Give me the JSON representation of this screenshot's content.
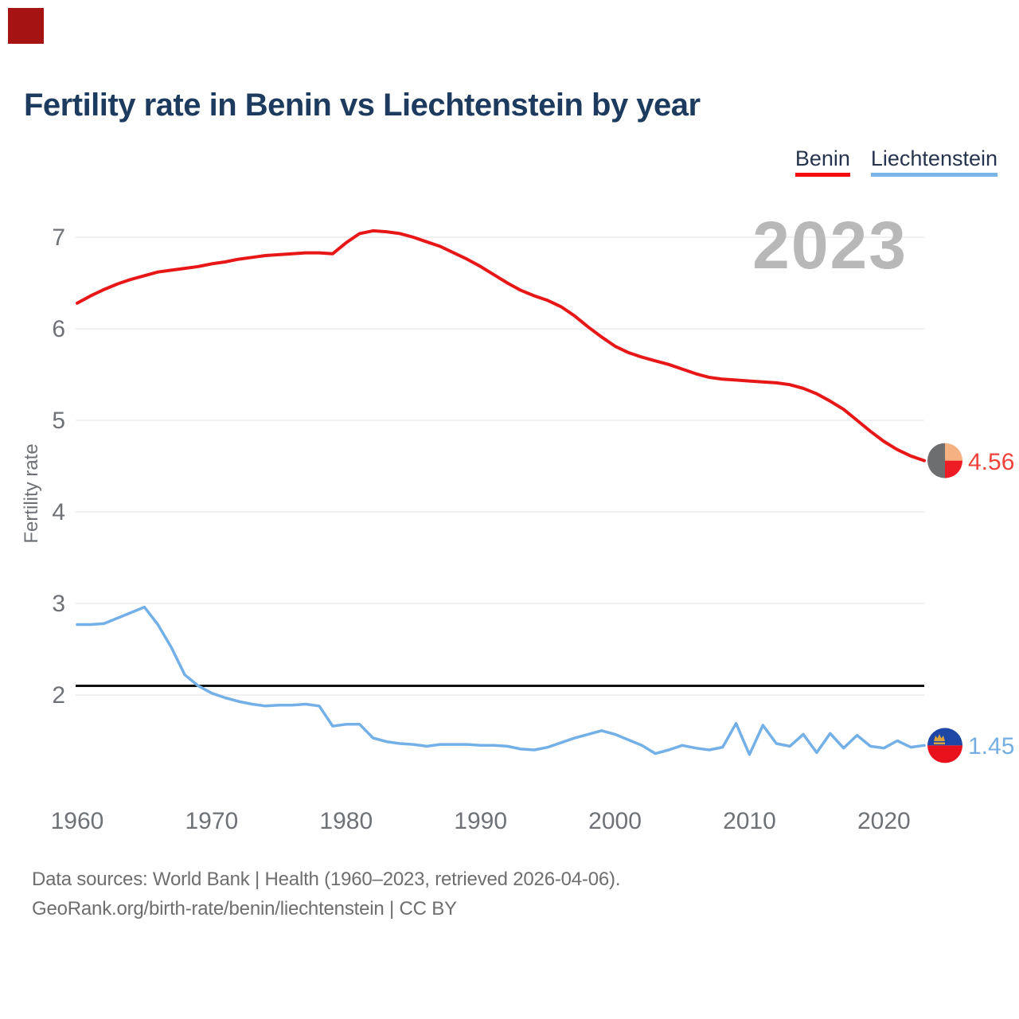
{
  "title": "Fertility rate in Benin vs Liechtenstein by year",
  "watermark_year": "2023",
  "legend": [
    {
      "label": "Benin",
      "color": "#f40b0b"
    },
    {
      "label": "Liechtenstein",
      "color": "#7cb5e8"
    }
  ],
  "end_labels": {
    "benin": "4.56",
    "liechtenstein": "1.45"
  },
  "footer": {
    "line1": "Data sources: World Bank | Health (1960–2023, retrieved 2026-04-06).",
    "line2": "GeoRank.org/birth-rate/benin/liechtenstein | CC BY"
  },
  "colors": {
    "corner_square": "#a51313",
    "title": "#1d3b5e",
    "benin_line": "#e81717",
    "liechtenstein_line": "#74b0e8",
    "label_benin": "#f0413a",
    "label_liechtenstein": "#74aee3",
    "reference_line": "#111111",
    "grid": "#ececec",
    "axis_text": "#6e7277",
    "watermark": "#b8b8b8",
    "footer_text": "#6e6e6e"
  },
  "flags": {
    "benin": {
      "left": "#6d6e70",
      "top_right": "#f6b183",
      "bottom_right": "#ee1c24"
    },
    "liechtenstein": {
      "top": "#1e46a5",
      "bottom": "#e8111c",
      "crown": "#d9a43b"
    }
  },
  "chart_data": {
    "type": "line",
    "title": "Fertility rate in Benin vs Liechtenstein by year",
    "xlabel": "",
    "ylabel": "Fertility rate",
    "x_ticks": [
      1960,
      1970,
      1980,
      1990,
      2000,
      2010,
      2020
    ],
    "y_ticks": [
      2,
      3,
      4,
      5,
      6,
      7
    ],
    "ylim": [
      1.2,
      7.4
    ],
    "grid": true,
    "legend_position": "top-right",
    "reference_line": 2.1,
    "x": [
      1960,
      1961,
      1962,
      1963,
      1964,
      1965,
      1966,
      1967,
      1968,
      1969,
      1970,
      1971,
      1972,
      1973,
      1974,
      1975,
      1976,
      1977,
      1978,
      1979,
      1980,
      1981,
      1982,
      1983,
      1984,
      1985,
      1986,
      1987,
      1988,
      1989,
      1990,
      1991,
      1992,
      1993,
      1994,
      1995,
      1996,
      1997,
      1998,
      1999,
      2000,
      2001,
      2002,
      2003,
      2004,
      2005,
      2006,
      2007,
      2008,
      2009,
      2010,
      2011,
      2012,
      2013,
      2014,
      2015,
      2016,
      2017,
      2018,
      2019,
      2020,
      2021,
      2022,
      2023
    ],
    "series": [
      {
        "name": "Benin",
        "values": [
          6.28,
          6.36,
          6.43,
          6.49,
          6.54,
          6.58,
          6.62,
          6.64,
          6.66,
          6.68,
          6.71,
          6.73,
          6.76,
          6.78,
          6.8,
          6.81,
          6.82,
          6.83,
          6.83,
          6.82,
          6.94,
          7.04,
          7.07,
          7.06,
          7.04,
          7.0,
          6.95,
          6.9,
          6.83,
          6.76,
          6.68,
          6.59,
          6.5,
          6.42,
          6.36,
          6.31,
          6.24,
          6.14,
          6.02,
          5.91,
          5.81,
          5.74,
          5.69,
          5.65,
          5.61,
          5.56,
          5.51,
          5.47,
          5.45,
          5.44,
          5.43,
          5.42,
          5.41,
          5.39,
          5.35,
          5.29,
          5.21,
          5.12,
          5.0,
          4.88,
          4.77,
          4.68,
          4.61,
          4.56
        ]
      },
      {
        "name": "Liechtenstein",
        "values": [
          2.77,
          2.77,
          2.78,
          2.84,
          2.9,
          2.96,
          2.77,
          2.52,
          2.22,
          2.1,
          2.02,
          1.97,
          1.93,
          1.9,
          1.88,
          1.89,
          1.89,
          1.9,
          1.88,
          1.66,
          1.68,
          1.68,
          1.53,
          1.49,
          1.47,
          1.46,
          1.44,
          1.46,
          1.46,
          1.46,
          1.45,
          1.45,
          1.44,
          1.41,
          1.4,
          1.43,
          1.48,
          1.53,
          1.57,
          1.61,
          1.57,
          1.51,
          1.45,
          1.36,
          1.4,
          1.45,
          1.42,
          1.4,
          1.43,
          1.69,
          1.35,
          1.67,
          1.47,
          1.44,
          1.57,
          1.37,
          1.58,
          1.42,
          1.56,
          1.44,
          1.42,
          1.5,
          1.43,
          1.45
        ]
      }
    ]
  }
}
